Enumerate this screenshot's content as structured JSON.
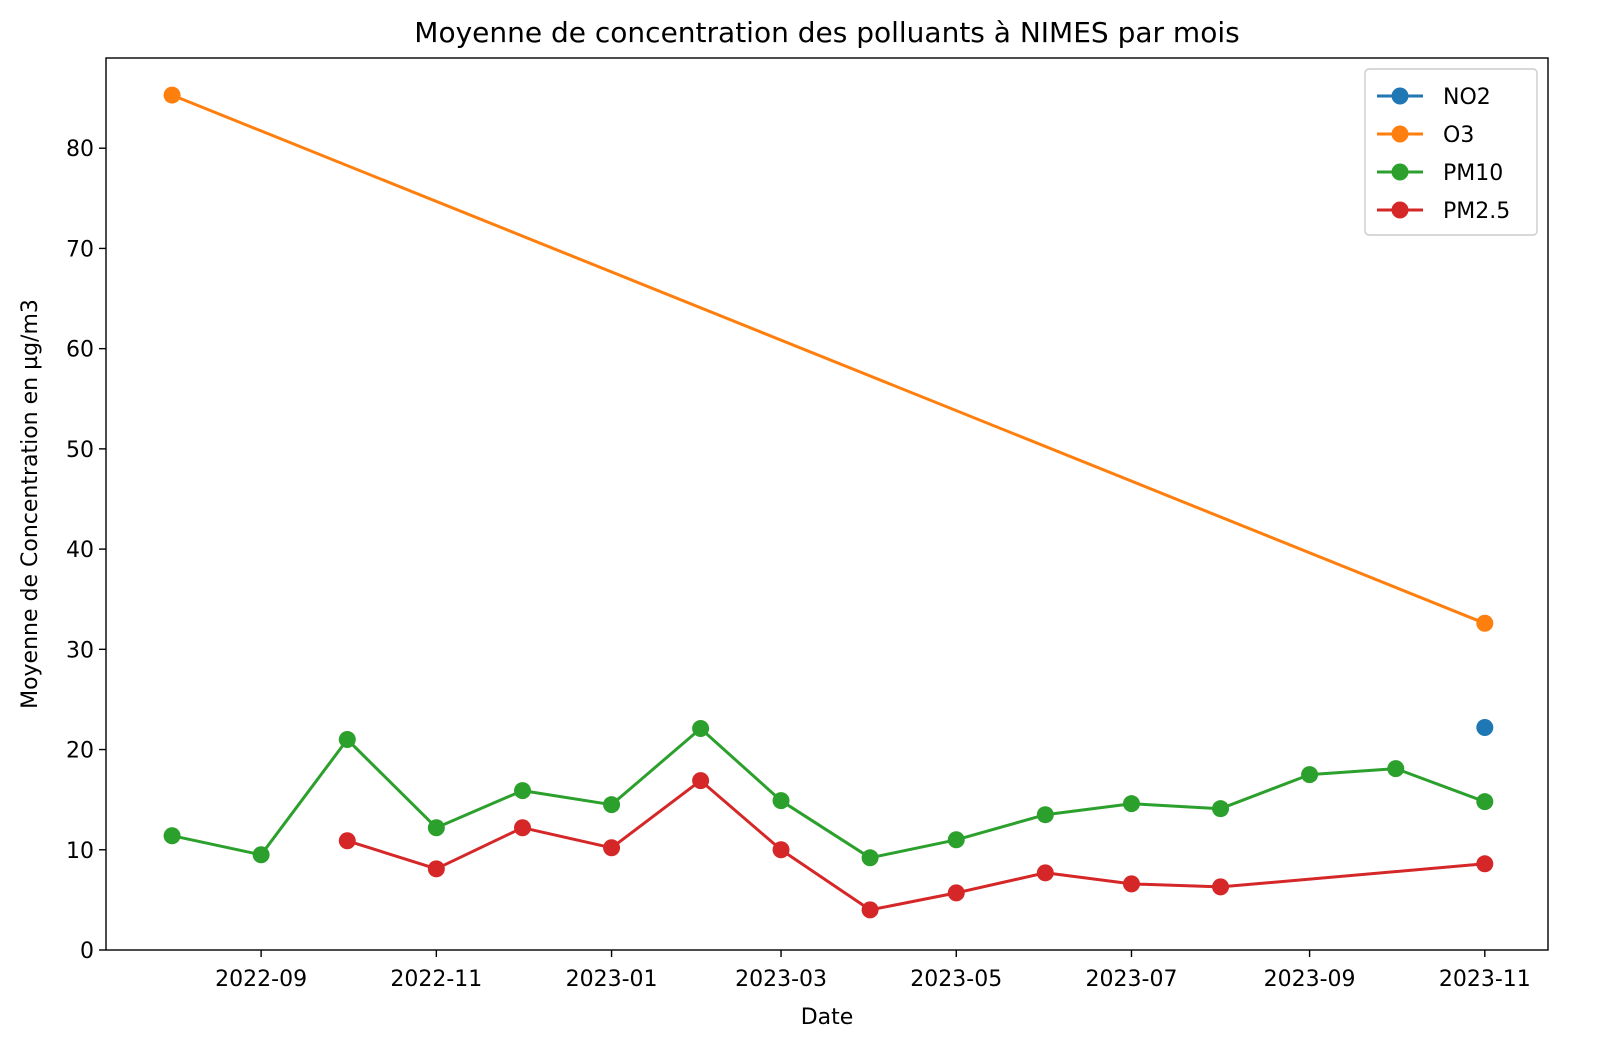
{
  "chart_data": {
    "type": "line",
    "title": "Moyenne de concentration des polluants à NIMES par mois",
    "xlabel": "Date",
    "ylabel": "Moyenne de Concentration en µg/m3",
    "ylim": [
      0,
      89
    ],
    "xlim": [
      "2022-07-09",
      "2023-11-23"
    ],
    "y_ticks": [
      0,
      10,
      20,
      30,
      40,
      50,
      60,
      70,
      80
    ],
    "x_ticks": [
      "2022-09",
      "2022-11",
      "2023-01",
      "2023-03",
      "2023-05",
      "2023-07",
      "2023-09",
      "2023-11"
    ],
    "grid": false,
    "legend_position": "top-right",
    "series": [
      {
        "name": "NO2",
        "color": "#1f77b4",
        "x": [
          "2023-11-01"
        ],
        "values": [
          22.2
        ]
      },
      {
        "name": "O3",
        "color": "#ff7f0e",
        "x": [
          "2022-08-01",
          "2023-11-01"
        ],
        "values": [
          85.3,
          32.6
        ]
      },
      {
        "name": "PM10",
        "color": "#2ca02c",
        "x": [
          "2022-08-01",
          "2022-09-01",
          "2022-10-01",
          "2022-11-01",
          "2022-12-01",
          "2023-01-01",
          "2023-02-01",
          "2023-03-01",
          "2023-04-01",
          "2023-05-01",
          "2023-06-01",
          "2023-07-01",
          "2023-08-01",
          "2023-09-01",
          "2023-10-01",
          "2023-11-01"
        ],
        "values": [
          11.4,
          9.5,
          21.0,
          12.2,
          15.9,
          14.5,
          22.1,
          14.9,
          9.2,
          11.0,
          13.5,
          14.6,
          14.1,
          17.5,
          18.1,
          14.8
        ]
      },
      {
        "name": "PM2.5",
        "color": "#d62728",
        "x": [
          "2022-10-01",
          "2022-11-01",
          "2022-12-01",
          "2023-01-01",
          "2023-02-01",
          "2023-03-01",
          "2023-04-01",
          "2023-05-01",
          "2023-06-01",
          "2023-07-01",
          "2023-08-01",
          "2023-11-01"
        ],
        "values": [
          10.9,
          8.1,
          12.2,
          10.2,
          16.9,
          10.0,
          4.0,
          5.7,
          7.7,
          6.6,
          6.3,
          8.6
        ]
      }
    ]
  }
}
